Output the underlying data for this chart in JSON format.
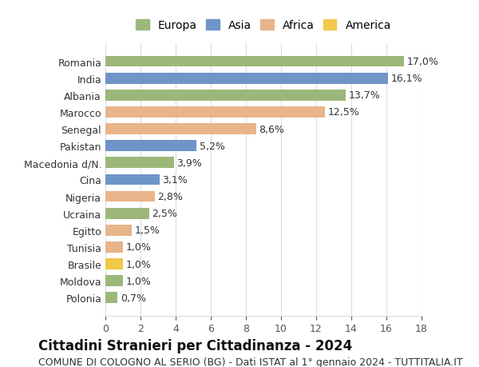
{
  "countries": [
    "Romania",
    "India",
    "Albania",
    "Marocco",
    "Senegal",
    "Pakistan",
    "Macedonia d/N.",
    "Cina",
    "Nigeria",
    "Ucraina",
    "Egitto",
    "Tunisia",
    "Brasile",
    "Moldova",
    "Polonia"
  ],
  "values": [
    17.0,
    16.1,
    13.7,
    12.5,
    8.6,
    5.2,
    3.9,
    3.1,
    2.8,
    2.5,
    1.5,
    1.0,
    1.0,
    1.0,
    0.7
  ],
  "labels": [
    "17,0%",
    "16,1%",
    "13,7%",
    "12,5%",
    "8,6%",
    "5,2%",
    "3,9%",
    "3,1%",
    "2,8%",
    "2,5%",
    "1,5%",
    "1,0%",
    "1,0%",
    "1,0%",
    "0,7%"
  ],
  "continents": [
    "Europa",
    "Asia",
    "Europa",
    "Africa",
    "Africa",
    "Asia",
    "Europa",
    "Asia",
    "Africa",
    "Europa",
    "Africa",
    "Africa",
    "America",
    "Europa",
    "Europa"
  ],
  "colors": {
    "Europa": "#9bb87a",
    "Asia": "#6f94c8",
    "Africa": "#e8b48a",
    "America": "#f0c84a"
  },
  "legend_order": [
    "Europa",
    "Asia",
    "Africa",
    "America"
  ],
  "legend_colors": [
    "#9bb87a",
    "#6f94c8",
    "#e8b48a",
    "#f0c84a"
  ],
  "title": "Cittadini Stranieri per Cittadinanza - 2024",
  "subtitle": "COMUNE DI COLOGNO AL SERIO (BG) - Dati ISTAT al 1° gennaio 2024 - TUTTITALIA.IT",
  "xlim": [
    0,
    18
  ],
  "xticks": [
    0,
    2,
    4,
    6,
    8,
    10,
    12,
    14,
    16,
    18
  ],
  "background_color": "#ffffff",
  "grid_color": "#dddddd",
  "bar_height": 0.65,
  "title_fontsize": 12,
  "subtitle_fontsize": 9,
  "tick_fontsize": 9,
  "label_fontsize": 9,
  "legend_fontsize": 10
}
